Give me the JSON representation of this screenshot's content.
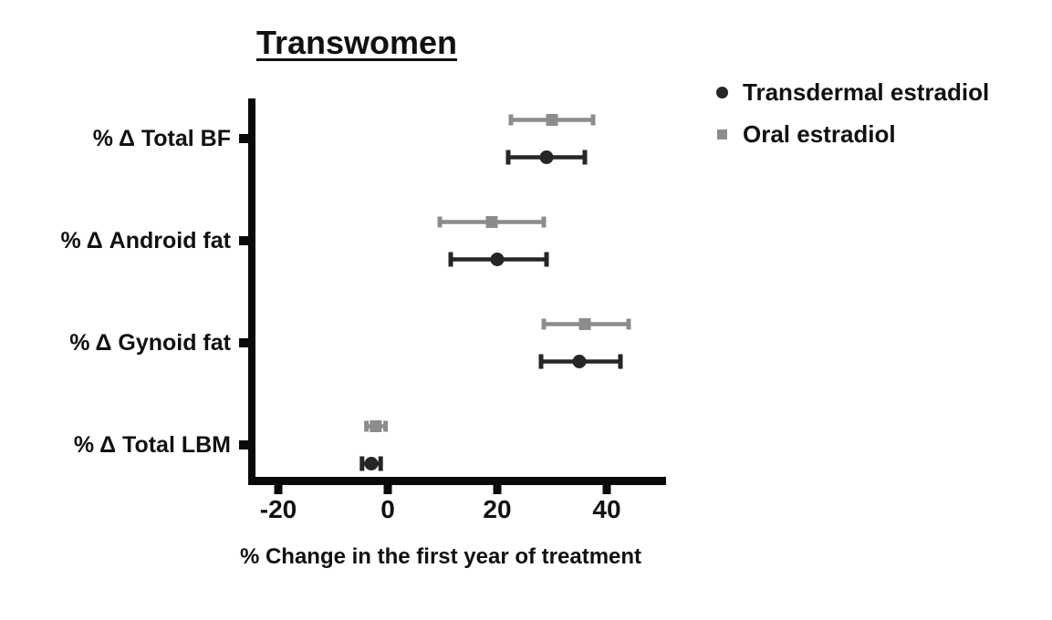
{
  "title": "Transwomen",
  "legend": {
    "items": [
      {
        "label": "Transdermal estradiol",
        "marker": "circle-icon",
        "color": "#262626"
      },
      {
        "label": "Oral estradiol",
        "marker": "square-icon",
        "color": "#8c8c8c"
      }
    ]
  },
  "chart_data": {
    "type": "scatter",
    "subtype": "horizontal-dot-plot-with-error-bars",
    "title": "Transwomen",
    "categories": [
      "% Δ Total BF",
      "% Δ Android fat",
      "% Δ Gynoid fat",
      "% Δ Total LBM"
    ],
    "series": [
      {
        "name": "Transdermal estradiol",
        "marker": "circle",
        "color": "#262626",
        "values": [
          29,
          20,
          35,
          -3
        ],
        "ci_low": [
          22,
          11.5,
          28,
          -4.7
        ],
        "ci_high": [
          36,
          29,
          42.5,
          -1.3
        ]
      },
      {
        "name": "Oral estradiol",
        "marker": "square",
        "color": "#8c8c8c",
        "values": [
          30,
          19,
          36,
          -2.2
        ],
        "ci_low": [
          22.5,
          9.5,
          28.5,
          -3.9
        ],
        "ci_high": [
          37.5,
          28.5,
          44,
          -0.4
        ]
      }
    ],
    "xlabel": "% Change in the first year of treatment",
    "ylabel": "",
    "x_ticks": [
      -20,
      0,
      20,
      40
    ],
    "x_tick_labels": [
      "-20",
      "0",
      "20",
      "40"
    ],
    "xlim": [
      -25.5,
      51
    ],
    "grid": false,
    "legend_position": "top-right",
    "axis_color": "#0a0a0a"
  }
}
